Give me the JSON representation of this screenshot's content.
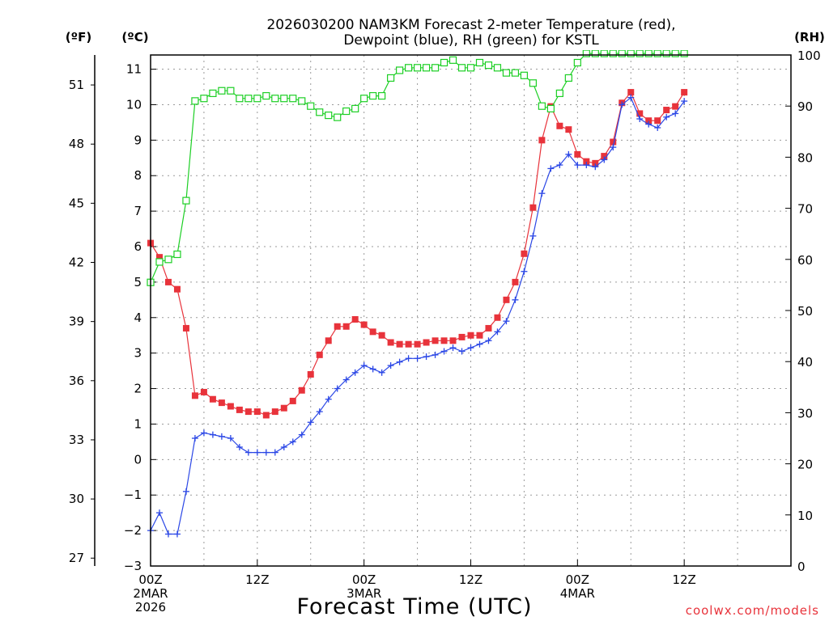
{
  "chart_data": {
    "type": "line",
    "title_line1": "2026030200 NAM3KM Forecast 2-meter Temperature (red),",
    "title_line2": "Dewpoint (blue), RH (green) for KSTL",
    "xlabel": "Forecast Time (UTC)",
    "left_unit_f": "(ºF)",
    "left_unit_c": "(ºC)",
    "right_unit": "(RH)",
    "watermark": "coolwx.com/models",
    "x_range": [
      0,
      36
    ],
    "y_c_range": [
      -3,
      11.4
    ],
    "y_f_ticks": [
      27,
      30,
      33,
      36,
      39,
      42,
      45,
      48,
      51
    ],
    "y_c_ticks": [
      -3,
      -2,
      -1,
      0,
      1,
      2,
      3,
      4,
      5,
      6,
      7,
      8,
      9,
      10,
      11
    ],
    "y_rh_ticks": [
      0,
      10,
      20,
      30,
      40,
      50,
      60,
      70,
      80,
      90,
      100
    ],
    "y_rh_range": [
      0,
      100
    ],
    "x_ticks": [
      {
        "x": 0,
        "label": "00Z",
        "date": "2MAR",
        "year": "2026"
      },
      {
        "x": 6,
        "label": "12Z",
        "date": "",
        "year": ""
      },
      {
        "x": 12,
        "label": "00Z",
        "date": "3MAR",
        "year": ""
      },
      {
        "x": 18,
        "label": "12Z",
        "date": "",
        "year": ""
      },
      {
        "x": 24,
        "label": "00Z",
        "date": "4MAR",
        "year": ""
      },
      {
        "x": 30,
        "label": "12Z",
        "date": "",
        "year": ""
      }
    ],
    "x": [
      0,
      0.5,
      1,
      1.5,
      2,
      2.5,
      3,
      3.5,
      4,
      4.5,
      5,
      5.5,
      6,
      6.5,
      7,
      7.5,
      8,
      8.5,
      9,
      9.5,
      10,
      10.5,
      11,
      11.5,
      12,
      12.5,
      13,
      13.5,
      14,
      14.5,
      15,
      15.5,
      16,
      16.5,
      17,
      17.5,
      18,
      18.5,
      19,
      19.5,
      20,
      20.5,
      21,
      21.5,
      22,
      22.5,
      23,
      23.5,
      24,
      24.5,
      25,
      25.5,
      26,
      26.5,
      27,
      27.5,
      28,
      28.5,
      29,
      29.5,
      30
    ],
    "series": [
      {
        "name": "Temperature",
        "color": "#e8333b",
        "marker": "filled-square",
        "axis": "celsius",
        "values": [
          6.1,
          5.7,
          5.0,
          4.8,
          3.7,
          1.8,
          1.9,
          1.7,
          1.6,
          1.5,
          1.4,
          1.35,
          1.35,
          1.25,
          1.35,
          1.45,
          1.65,
          1.95,
          2.4,
          2.95,
          3.35,
          3.75,
          3.75,
          3.95,
          3.8,
          3.6,
          3.5,
          3.3,
          3.25,
          3.25,
          3.25,
          3.3,
          3.35,
          3.35,
          3.35,
          3.45,
          3.5,
          3.5,
          3.7,
          4.0,
          4.5,
          5.0,
          5.8,
          7.1,
          9.0,
          9.95,
          9.4,
          9.3,
          8.6,
          8.4,
          8.35,
          8.55,
          8.95,
          10.05,
          10.35,
          9.75,
          9.55,
          9.55,
          9.85,
          9.95,
          10.35
        ]
      },
      {
        "name": "Dewpoint",
        "color": "#2b47e6",
        "marker": "plus",
        "axis": "celsius",
        "values": [
          -2.0,
          -1.5,
          -2.1,
          -2.1,
          -0.9,
          0.6,
          0.75,
          0.7,
          0.65,
          0.6,
          0.35,
          0.2,
          0.2,
          0.2,
          0.2,
          0.35,
          0.5,
          0.7,
          1.05,
          1.35,
          1.7,
          2.0,
          2.25,
          2.45,
          2.65,
          2.55,
          2.45,
          2.65,
          2.75,
          2.85,
          2.85,
          2.9,
          2.95,
          3.05,
          3.15,
          3.05,
          3.15,
          3.25,
          3.35,
          3.6,
          3.9,
          4.5,
          5.3,
          6.3,
          7.5,
          8.2,
          8.3,
          8.6,
          8.3,
          8.3,
          8.25,
          8.45,
          8.8,
          10.0,
          10.2,
          9.6,
          9.45,
          9.35,
          9.65,
          9.75,
          10.1
        ]
      },
      {
        "name": "RH",
        "color": "#1ccf24",
        "marker": "open-square",
        "axis": "rh",
        "values": [
          55.5,
          59.5,
          60,
          61,
          71.5,
          91,
          91.5,
          92.5,
          93,
          93,
          91.5,
          91.5,
          91.5,
          92,
          91.5,
          91.5,
          91.5,
          91,
          90,
          88.8,
          88.2,
          87.8,
          89,
          89.5,
          91.5,
          92,
          92,
          95.5,
          97,
          97.5,
          97.5,
          97.5,
          97.5,
          98.5,
          99,
          97.5,
          97.5,
          98.5,
          98,
          97.5,
          96.5,
          96.5,
          96,
          94.5,
          90,
          89.5,
          92.5,
          95.5,
          98.5,
          100.3,
          100.3,
          100.3,
          100.3,
          100.3,
          100.3,
          100.3,
          100.3,
          100.3,
          100.3,
          100.3,
          100.3
        ]
      }
    ]
  }
}
